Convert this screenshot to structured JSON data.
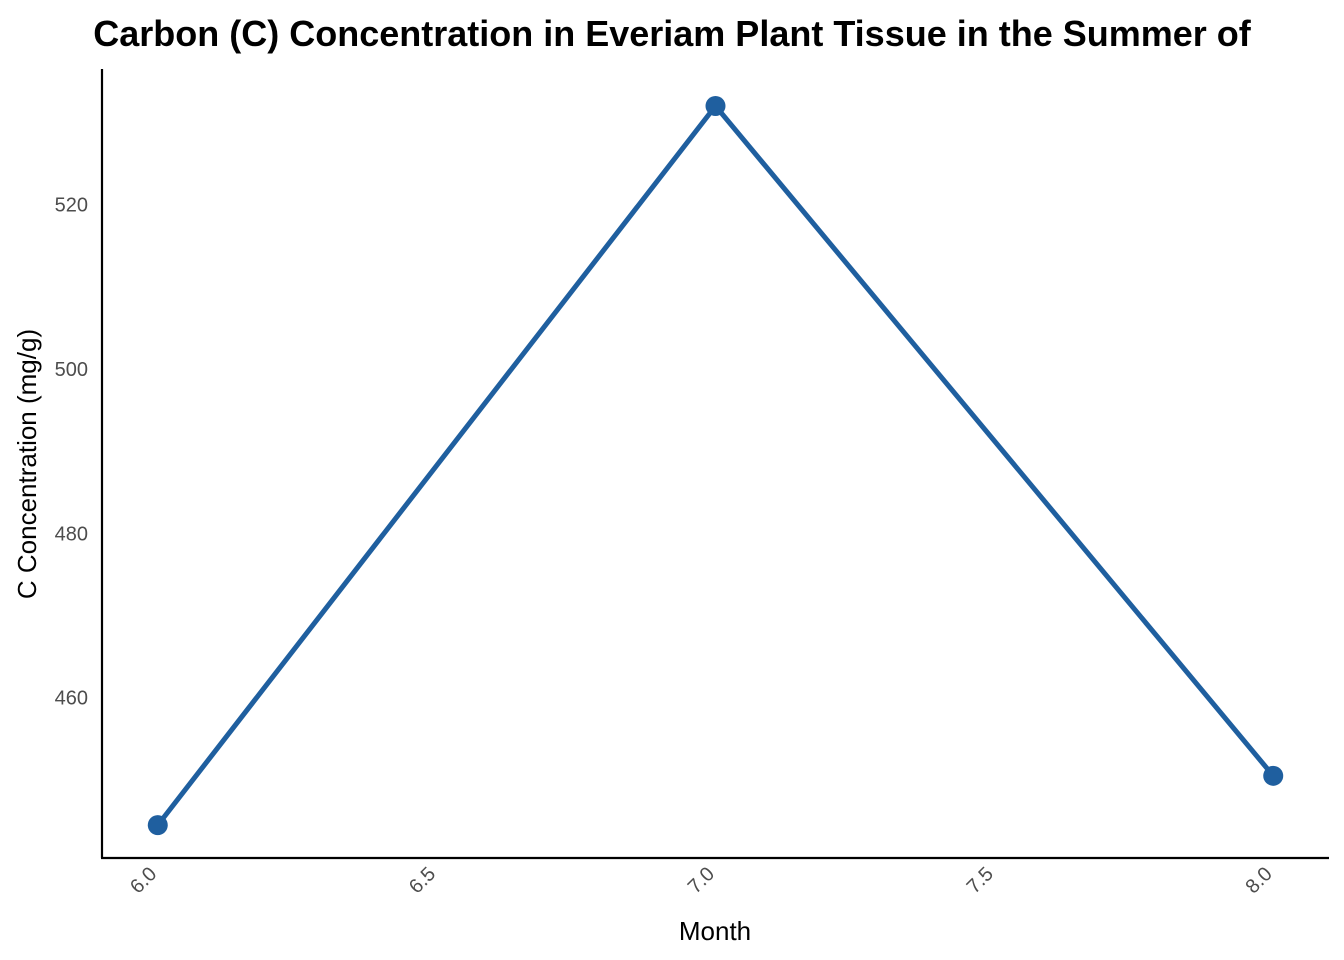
{
  "chart_data": {
    "type": "line",
    "title": "Carbon (C) Concentration in Everiam Plant Tissue in the Summer of",
    "xlabel": "Month",
    "ylabel": "C Concentration (mg/g)",
    "x": [
      6.0,
      7.0,
      8.0
    ],
    "series": [
      {
        "values": [
          444.5,
          532.0,
          450.5
        ],
        "color": "#1f5f9f"
      }
    ],
    "xlim": [
      5.9,
      8.1
    ],
    "ylim": [
      440.5,
      536.5
    ],
    "x_ticks": [
      6.0,
      6.5,
      7.0,
      7.5,
      8.0
    ],
    "x_tick_labels": [
      "6.0",
      "6.5",
      "7.0",
      "7.5",
      "8.0"
    ],
    "y_ticks": [
      460,
      480,
      500,
      520
    ],
    "y_tick_labels": [
      "460",
      "480",
      "500",
      "520"
    ],
    "x_tick_rotation_deg": -45,
    "grid": false,
    "legend": "none"
  }
}
